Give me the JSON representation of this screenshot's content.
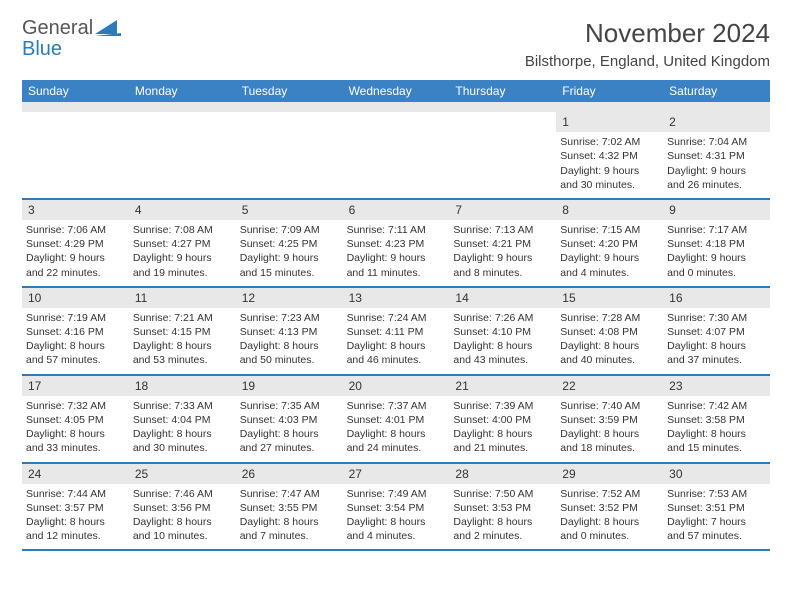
{
  "brand": {
    "line1": "General",
    "line2": "Blue"
  },
  "colors": {
    "header_bg": "#3b82c4",
    "header_text": "#ffffff",
    "divider": "#2b7bbd",
    "daynum_bg": "#e8e8e8",
    "text": "#333333",
    "brand_grey": "#555555",
    "brand_blue": "#2b7bbd"
  },
  "title": "November 2024",
  "location": "Bilsthorpe, England, United Kingdom",
  "weekdays": [
    "Sunday",
    "Monday",
    "Tuesday",
    "Wednesday",
    "Thursday",
    "Friday",
    "Saturday"
  ],
  "weeks": [
    [
      null,
      null,
      null,
      null,
      null,
      {
        "n": "1",
        "sr": "7:02 AM",
        "ss": "4:32 PM",
        "dl": "9 hours and 30 minutes."
      },
      {
        "n": "2",
        "sr": "7:04 AM",
        "ss": "4:31 PM",
        "dl": "9 hours and 26 minutes."
      }
    ],
    [
      {
        "n": "3",
        "sr": "7:06 AM",
        "ss": "4:29 PM",
        "dl": "9 hours and 22 minutes."
      },
      {
        "n": "4",
        "sr": "7:08 AM",
        "ss": "4:27 PM",
        "dl": "9 hours and 19 minutes."
      },
      {
        "n": "5",
        "sr": "7:09 AM",
        "ss": "4:25 PM",
        "dl": "9 hours and 15 minutes."
      },
      {
        "n": "6",
        "sr": "7:11 AM",
        "ss": "4:23 PM",
        "dl": "9 hours and 11 minutes."
      },
      {
        "n": "7",
        "sr": "7:13 AM",
        "ss": "4:21 PM",
        "dl": "9 hours and 8 minutes."
      },
      {
        "n": "8",
        "sr": "7:15 AM",
        "ss": "4:20 PM",
        "dl": "9 hours and 4 minutes."
      },
      {
        "n": "9",
        "sr": "7:17 AM",
        "ss": "4:18 PM",
        "dl": "9 hours and 0 minutes."
      }
    ],
    [
      {
        "n": "10",
        "sr": "7:19 AM",
        "ss": "4:16 PM",
        "dl": "8 hours and 57 minutes."
      },
      {
        "n": "11",
        "sr": "7:21 AM",
        "ss": "4:15 PM",
        "dl": "8 hours and 53 minutes."
      },
      {
        "n": "12",
        "sr": "7:23 AM",
        "ss": "4:13 PM",
        "dl": "8 hours and 50 minutes."
      },
      {
        "n": "13",
        "sr": "7:24 AM",
        "ss": "4:11 PM",
        "dl": "8 hours and 46 minutes."
      },
      {
        "n": "14",
        "sr": "7:26 AM",
        "ss": "4:10 PM",
        "dl": "8 hours and 43 minutes."
      },
      {
        "n": "15",
        "sr": "7:28 AM",
        "ss": "4:08 PM",
        "dl": "8 hours and 40 minutes."
      },
      {
        "n": "16",
        "sr": "7:30 AM",
        "ss": "4:07 PM",
        "dl": "8 hours and 37 minutes."
      }
    ],
    [
      {
        "n": "17",
        "sr": "7:32 AM",
        "ss": "4:05 PM",
        "dl": "8 hours and 33 minutes."
      },
      {
        "n": "18",
        "sr": "7:33 AM",
        "ss": "4:04 PM",
        "dl": "8 hours and 30 minutes."
      },
      {
        "n": "19",
        "sr": "7:35 AM",
        "ss": "4:03 PM",
        "dl": "8 hours and 27 minutes."
      },
      {
        "n": "20",
        "sr": "7:37 AM",
        "ss": "4:01 PM",
        "dl": "8 hours and 24 minutes."
      },
      {
        "n": "21",
        "sr": "7:39 AM",
        "ss": "4:00 PM",
        "dl": "8 hours and 21 minutes."
      },
      {
        "n": "22",
        "sr": "7:40 AM",
        "ss": "3:59 PM",
        "dl": "8 hours and 18 minutes."
      },
      {
        "n": "23",
        "sr": "7:42 AM",
        "ss": "3:58 PM",
        "dl": "8 hours and 15 minutes."
      }
    ],
    [
      {
        "n": "24",
        "sr": "7:44 AM",
        "ss": "3:57 PM",
        "dl": "8 hours and 12 minutes."
      },
      {
        "n": "25",
        "sr": "7:46 AM",
        "ss": "3:56 PM",
        "dl": "8 hours and 10 minutes."
      },
      {
        "n": "26",
        "sr": "7:47 AM",
        "ss": "3:55 PM",
        "dl": "8 hours and 7 minutes."
      },
      {
        "n": "27",
        "sr": "7:49 AM",
        "ss": "3:54 PM",
        "dl": "8 hours and 4 minutes."
      },
      {
        "n": "28",
        "sr": "7:50 AM",
        "ss": "3:53 PM",
        "dl": "8 hours and 2 minutes."
      },
      {
        "n": "29",
        "sr": "7:52 AM",
        "ss": "3:52 PM",
        "dl": "8 hours and 0 minutes."
      },
      {
        "n": "30",
        "sr": "7:53 AM",
        "ss": "3:51 PM",
        "dl": "7 hours and 57 minutes."
      }
    ]
  ],
  "labels": {
    "sunrise": "Sunrise:",
    "sunset": "Sunset:",
    "daylight": "Daylight:"
  }
}
